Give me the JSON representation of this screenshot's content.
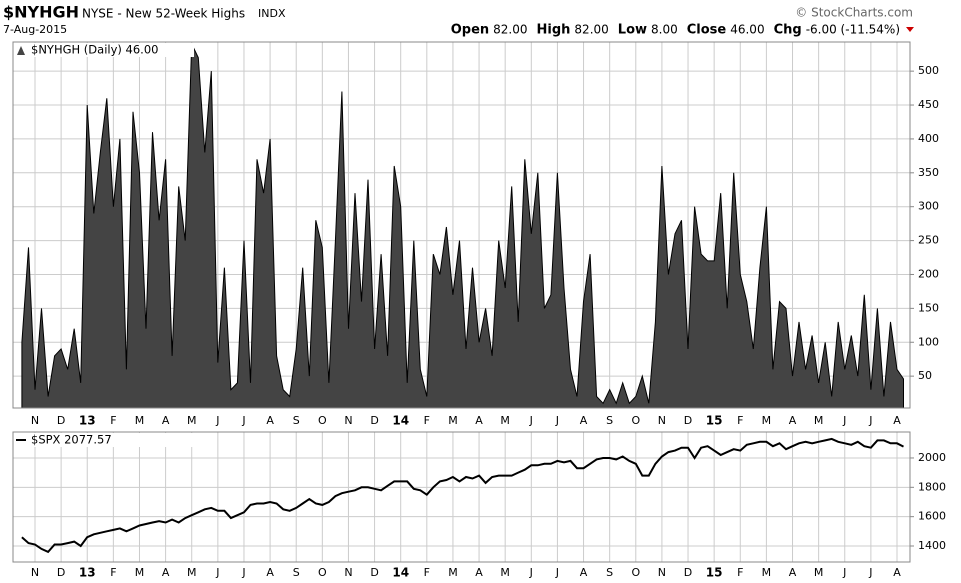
{
  "header": {
    "symbol": "$NYHGH",
    "name": "NYSE - New 52-Week Highs",
    "exchange": "INDX",
    "date": "7-Aug-2015",
    "watermark": "© StockCharts.com",
    "quote": [
      {
        "label": "Open",
        "value": "82.00"
      },
      {
        "label": "High",
        "value": "82.00"
      },
      {
        "label": "Low",
        "value": "8.00"
      },
      {
        "label": "Close",
        "value": "46.00"
      },
      {
        "label": "Chg",
        "value": "-6.00 (-11.54%)"
      }
    ]
  },
  "chart_data": [
    {
      "type": "area",
      "color": "#444444",
      "grid": true,
      "categories": [
        null,
        null,
        "N",
        null,
        null,
        null,
        "D",
        null,
        null,
        null,
        "13",
        null,
        null,
        null,
        "F",
        null,
        null,
        null,
        "M",
        null,
        null,
        null,
        "A",
        null,
        null,
        null,
        "M",
        null,
        null,
        null,
        "J",
        null,
        null,
        null,
        "J",
        null,
        null,
        null,
        "A",
        null,
        null,
        null,
        "S",
        null,
        null,
        null,
        "O",
        null,
        null,
        null,
        "N",
        null,
        null,
        null,
        "D",
        null,
        null,
        null,
        "14",
        null,
        null,
        null,
        "F",
        null,
        null,
        null,
        "M",
        null,
        null,
        null,
        "A",
        null,
        null,
        null,
        "M",
        null,
        null,
        null,
        "J",
        null,
        null,
        null,
        "J",
        null,
        null,
        null,
        "A",
        null,
        null,
        null,
        "S",
        null,
        null,
        null,
        "O",
        null,
        null,
        null,
        "N",
        null,
        null,
        null,
        "D",
        null,
        null,
        null,
        "15",
        null,
        null,
        null,
        "F",
        null,
        null,
        null,
        "M",
        null,
        null,
        null,
        "A",
        null,
        null,
        null,
        "M",
        null,
        null,
        null,
        "J",
        null,
        null,
        null,
        "J",
        null,
        null,
        null,
        "A",
        null
      ],
      "series": [
        {
          "name": "$NYHGH (Daily) 46.00",
          "color": "#000000",
          "values": [
            100,
            240,
            30,
            150,
            20,
            80,
            90,
            60,
            120,
            40,
            450,
            290,
            380,
            460,
            300,
            400,
            60,
            440,
            350,
            120,
            410,
            280,
            370,
            80,
            330,
            250,
            540,
            520,
            380,
            500,
            70,
            210,
            30,
            40,
            250,
            40,
            370,
            320,
            400,
            80,
            30,
            20,
            90,
            210,
            50,
            280,
            240,
            40,
            250,
            470,
            120,
            320,
            160,
            340,
            90,
            230,
            80,
            360,
            300,
            40,
            250,
            60,
            20,
            230,
            200,
            270,
            170,
            250,
            90,
            210,
            100,
            150,
            80,
            250,
            180,
            330,
            130,
            370,
            260,
            350,
            150,
            170,
            350,
            180,
            60,
            20,
            160,
            230,
            20,
            10,
            30,
            10,
            40,
            10,
            20,
            50,
            10,
            130,
            360,
            200,
            260,
            280,
            90,
            300,
            230,
            220,
            220,
            320,
            150,
            350,
            200,
            160,
            90,
            210,
            300,
            60,
            160,
            150,
            50,
            130,
            60,
            110,
            40,
            100,
            20,
            130,
            60,
            110,
            50,
            170,
            30,
            150,
            20,
            130,
            60,
            46
          ]
        }
      ],
      "ylim": [
        3,
        543
      ],
      "yticks": [
        50,
        100,
        150,
        200,
        250,
        300,
        350,
        400,
        450,
        500
      ]
    },
    {
      "type": "line",
      "grid": true,
      "categories": [
        null,
        null,
        "N",
        null,
        null,
        null,
        "D",
        null,
        null,
        null,
        "13",
        null,
        null,
        null,
        "F",
        null,
        null,
        null,
        "M",
        null,
        null,
        null,
        "A",
        null,
        null,
        null,
        "M",
        null,
        null,
        null,
        "J",
        null,
        null,
        null,
        "J",
        null,
        null,
        null,
        "A",
        null,
        null,
        null,
        "S",
        null,
        null,
        null,
        "O",
        null,
        null,
        null,
        "N",
        null,
        null,
        null,
        "D",
        null,
        null,
        null,
        "14",
        null,
        null,
        null,
        "F",
        null,
        null,
        null,
        "M",
        null,
        null,
        null,
        "A",
        null,
        null,
        null,
        "M",
        null,
        null,
        null,
        "J",
        null,
        null,
        null,
        "J",
        null,
        null,
        null,
        "A",
        null,
        null,
        null,
        "S",
        null,
        null,
        null,
        "O",
        null,
        null,
        null,
        "N",
        null,
        null,
        null,
        "D",
        null,
        null,
        null,
        "15",
        null,
        null,
        null,
        "F",
        null,
        null,
        null,
        "M",
        null,
        null,
        null,
        "A",
        null,
        null,
        null,
        "M",
        null,
        null,
        null,
        "J",
        null,
        null,
        null,
        "J",
        null,
        null,
        null,
        "A",
        null
      ],
      "series": [
        {
          "name": "$SPX 2077.57",
          "color": "#000000",
          "values": [
            1460,
            1420,
            1410,
            1380,
            1360,
            1410,
            1410,
            1420,
            1430,
            1400,
            1460,
            1480,
            1490,
            1500,
            1510,
            1520,
            1500,
            1520,
            1540,
            1550,
            1560,
            1570,
            1560,
            1580,
            1560,
            1590,
            1610,
            1630,
            1650,
            1660,
            1640,
            1640,
            1590,
            1610,
            1630,
            1680,
            1690,
            1690,
            1700,
            1690,
            1650,
            1640,
            1660,
            1690,
            1720,
            1690,
            1680,
            1700,
            1740,
            1760,
            1770,
            1780,
            1800,
            1800,
            1790,
            1780,
            1810,
            1840,
            1840,
            1840,
            1790,
            1780,
            1750,
            1800,
            1840,
            1850,
            1870,
            1840,
            1870,
            1860,
            1880,
            1830,
            1870,
            1880,
            1880,
            1880,
            1900,
            1920,
            1950,
            1950,
            1960,
            1960,
            1980,
            1970,
            1980,
            1930,
            1930,
            1960,
            1990,
            2000,
            2000,
            1990,
            2010,
            1980,
            1960,
            1880,
            1880,
            1960,
            2010,
            2040,
            2050,
            2070,
            2070,
            2000,
            2070,
            2080,
            2050,
            2020,
            2040,
            2060,
            2050,
            2090,
            2100,
            2110,
            2110,
            2080,
            2100,
            2060,
            2080,
            2100,
            2110,
            2100,
            2110,
            2120,
            2130,
            2110,
            2100,
            2090,
            2110,
            2080,
            2070,
            2120,
            2120,
            2100,
            2100,
            2077.57
          ]
        }
      ],
      "ylim": [
        1291,
        2177
      ],
      "yticks": [
        1400,
        1600,
        1800,
        2000
      ]
    }
  ]
}
